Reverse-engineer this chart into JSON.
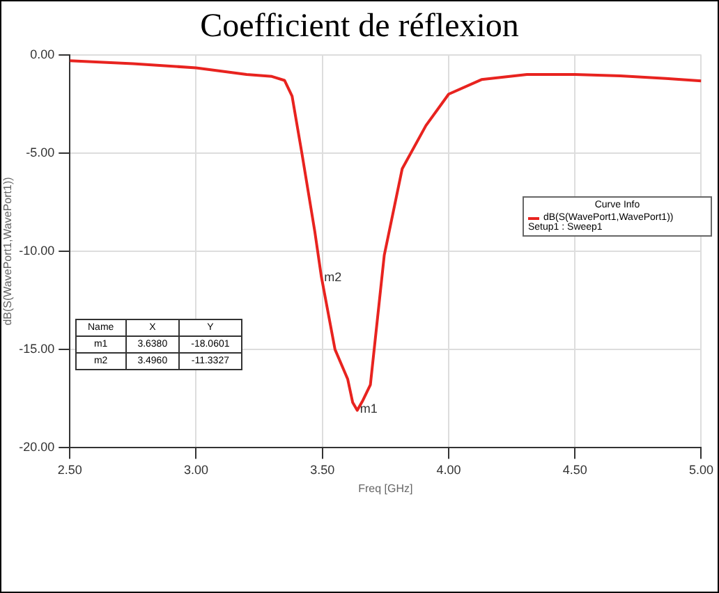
{
  "chart_data": {
    "type": "line",
    "title": "Coefficient de réflexion",
    "xlabel": "Freq [GHz]",
    "ylabel": "dB(S(WavePort1,WavePort1))",
    "legend_title": "Curve Info",
    "legend": "right",
    "x": [
      2.5,
      2.75,
      3.0,
      3.2,
      3.3,
      3.35,
      3.38,
      3.42,
      3.47,
      3.496,
      3.55,
      3.6,
      3.62,
      3.638,
      3.66,
      3.69,
      3.745,
      3.816,
      3.91,
      4.0,
      4.13,
      4.31,
      4.5,
      4.68,
      4.86,
      5.0
    ],
    "series": [
      {
        "name": "dB(S(WavePort1,WavePort1))",
        "color": "#e8231f",
        "values": [
          -0.3,
          -0.45,
          -0.66,
          -1.0,
          -1.1,
          -1.3,
          -2.1,
          -5.1,
          -9.0,
          -11.3,
          -15.0,
          -16.5,
          -17.7,
          -18.1,
          -17.6,
          -16.8,
          -10.2,
          -5.8,
          -3.6,
          -2.0,
          -1.26,
          -1.0,
          -1.0,
          -1.07,
          -1.2,
          -1.33
        ]
      }
    ],
    "xlim": [
      2.5,
      5.0
    ],
    "xticks": [
      {
        "value": 2.5,
        "label": "2.50"
      },
      {
        "value": 3.0,
        "label": "3.00"
      },
      {
        "value": 3.5,
        "label": "3.50"
      },
      {
        "value": 4.0,
        "label": "4.00"
      },
      {
        "value": 4.5,
        "label": "4.50"
      },
      {
        "value": 5.0,
        "label": "5.00"
      }
    ],
    "ylim": [
      -20,
      0
    ],
    "yticks": [
      {
        "value": -20,
        "label": "-20.00"
      },
      {
        "value": -15,
        "label": "-15.00"
      },
      {
        "value": -10,
        "label": "-10.00"
      },
      {
        "value": -5,
        "label": "-5.00"
      },
      {
        "value": 0,
        "label": "0.00"
      }
    ],
    "grid": true,
    "marker": "none",
    "line_style": "solid",
    "annotations": [
      {
        "text": "m1",
        "x": 3.638,
        "y": -18.0601
      },
      {
        "text": "m2",
        "x": 3.496,
        "y": -11.3327
      },
      "Name",
      "X",
      "Y",
      "m1",
      "3.6380",
      "-18.0601",
      "m2",
      "3.4960",
      "-11.3327",
      "Setup1 : Sweep1"
    ]
  }
}
